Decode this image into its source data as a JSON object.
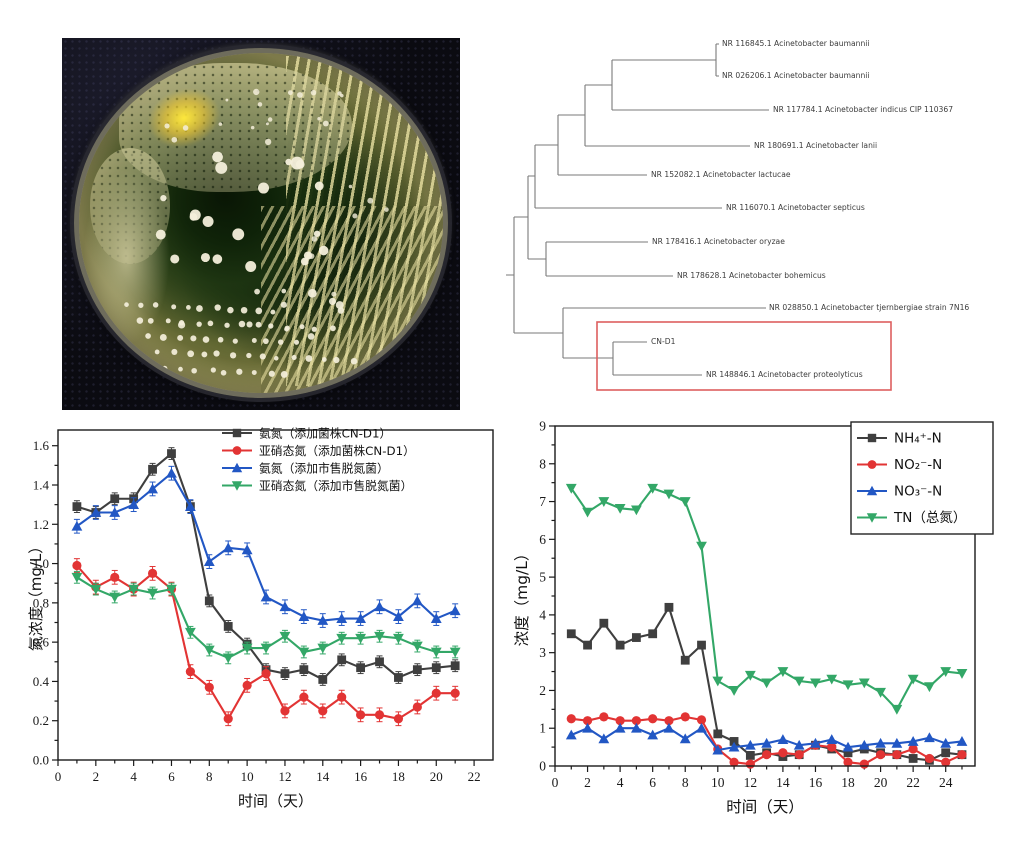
{
  "figure": {
    "panels": [
      "petri-dish-photo",
      "phylogenetic-tree",
      "nitrogen-chart-left",
      "nitrogen-chart-right"
    ]
  },
  "petri": {
    "background_color": "#0b0b11",
    "agar_color": "#2e4418",
    "rim_color": "#6e6c5c",
    "colony_color": "#f4efdb"
  },
  "tree": {
    "branch_color": "#7a7a7a",
    "highlight_box_color": "#dd5f5f",
    "leaves": [
      {
        "label": "NR 116845.1 Acinetobacter baumannii"
      },
      {
        "label": "NR 026206.1 Acinetobacter baumannii"
      },
      {
        "label": "NR 117784.1 Acinetobacter indicus CIP 110367"
      },
      {
        "label": "NR 180691.1 Acinetobacter lanii"
      },
      {
        "label": "NR 152082.1 Acinetobacter lactucae"
      },
      {
        "label": "NR 116070.1 Acinetobacter septicus"
      },
      {
        "label": "NR 178416.1 Acinetobacter oryzae"
      },
      {
        "label": "NR 178628.1 Acinetobacter bohemicus"
      },
      {
        "label": "NR 028850.1 Acinetobacter tjernbergiae strain 7N16"
      },
      {
        "label": "CN-D1"
      },
      {
        "label": "NR 148846.1 Acinetobacter proteolyticus"
      }
    ],
    "highlighted_leaves": [
      "CN-D1",
      "NR 148846.1 Acinetobacter proteolyticus"
    ]
  },
  "chart_data": [
    {
      "type": "line",
      "title": "",
      "xlabel": "时间（天）",
      "ylabel": "氮浓度（mg/L）",
      "xlim": [
        0,
        23
      ],
      "ylim": [
        0,
        1.68
      ],
      "xticks": [
        0,
        2,
        4,
        6,
        8,
        10,
        12,
        14,
        16,
        18,
        20,
        22
      ],
      "yticks": [
        0.0,
        0.2,
        0.4,
        0.6,
        0.8,
        1.0,
        1.2,
        1.4,
        1.6
      ],
      "ytick_decimals": 1,
      "grid": false,
      "legend_position": "top-right",
      "legend_box": false,
      "x_start": 1,
      "series": [
        {
          "name": "氨氮（添加菌株CN-D1）",
          "color": "#3f3f3f",
          "marker": "square",
          "err": 0.03,
          "values": [
            1.29,
            1.26,
            1.33,
            1.33,
            1.48,
            1.56,
            1.29,
            0.81,
            0.68,
            0.59,
            0.46,
            0.44,
            0.46,
            0.41,
            0.51,
            0.47,
            0.5,
            0.42,
            0.46,
            0.47,
            0.48
          ]
        },
        {
          "name": "亚硝态氮（添加菌株CN-D1）",
          "color": "#e23434",
          "marker": "circle",
          "err": 0.035,
          "values": [
            0.99,
            0.88,
            0.93,
            0.87,
            0.95,
            0.87,
            0.45,
            0.37,
            0.21,
            0.38,
            0.44,
            0.25,
            0.32,
            0.25,
            0.32,
            0.23,
            0.23,
            0.21,
            0.27,
            0.34,
            0.34
          ]
        },
        {
          "name": "氨氮（添加市售脱氮菌）",
          "color": "#2257c4",
          "marker": "triangle-up",
          "err": 0.035,
          "values": [
            1.19,
            1.26,
            1.26,
            1.3,
            1.38,
            1.46,
            1.29,
            1.01,
            1.08,
            1.07,
            0.83,
            0.78,
            0.73,
            0.71,
            0.72,
            0.72,
            0.78,
            0.73,
            0.81,
            0.72,
            0.76
          ]
        },
        {
          "name": "亚硝态氮（添加市售脱氮菌）",
          "color": "#33a767",
          "marker": "triangle-down",
          "err": 0.03,
          "values": [
            0.93,
            0.87,
            0.83,
            0.87,
            0.85,
            0.87,
            0.65,
            0.56,
            0.52,
            0.57,
            0.57,
            0.63,
            0.55,
            0.57,
            0.62,
            0.62,
            0.63,
            0.62,
            0.58,
            0.55,
            0.55
          ]
        }
      ]
    },
    {
      "type": "line",
      "title": "",
      "xlabel": "时间（天）",
      "ylabel": "浓度（mg/L）",
      "xlim": [
        0,
        25.8
      ],
      "ylim": [
        0,
        9
      ],
      "xticks": [
        0,
        2,
        4,
        6,
        8,
        10,
        12,
        14,
        16,
        18,
        20,
        22,
        24
      ],
      "yticks": [
        0,
        1,
        2,
        3,
        4,
        5,
        6,
        7,
        8,
        9
      ],
      "ytick_decimals": 0,
      "grid": false,
      "legend_position": "top-right",
      "legend_box": true,
      "x_start": 1,
      "series": [
        {
          "name": "NH₄⁺-N",
          "color": "#3f3f3f",
          "marker": "square",
          "err": 0,
          "values": [
            3.5,
            3.2,
            3.78,
            3.2,
            3.4,
            3.5,
            4.2,
            2.8,
            3.2,
            0.85,
            0.65,
            0.28,
            0.35,
            0.25,
            0.3,
            0.55,
            0.45,
            0.35,
            0.45,
            0.35,
            0.3,
            0.2,
            0.15,
            0.35,
            0.3
          ]
        },
        {
          "name": "NO₂⁻-N",
          "color": "#e23434",
          "marker": "circle",
          "err": 0,
          "values": [
            1.25,
            1.2,
            1.3,
            1.2,
            1.2,
            1.25,
            1.2,
            1.3,
            1.22,
            0.45,
            0.1,
            0.05,
            0.3,
            0.35,
            0.3,
            0.55,
            0.5,
            0.1,
            0.05,
            0.3,
            0.3,
            0.45,
            0.2,
            0.1,
            0.3
          ]
        },
        {
          "name": "NO₃⁻-N",
          "color": "#2257c4",
          "marker": "triangle-up",
          "err": 0,
          "values": [
            0.82,
            1.0,
            0.72,
            1.0,
            1.0,
            0.82,
            1.0,
            0.72,
            1.0,
            0.42,
            0.5,
            0.55,
            0.6,
            0.7,
            0.55,
            0.6,
            0.7,
            0.5,
            0.55,
            0.6,
            0.6,
            0.65,
            0.75,
            0.6,
            0.65
          ]
        },
        {
          "name": "TN（总氮）",
          "color": "#33a767",
          "marker": "triangle-down",
          "err": 0,
          "values": [
            7.35,
            6.72,
            7.0,
            6.82,
            6.78,
            7.35,
            7.2,
            7.0,
            5.82,
            2.25,
            2.0,
            2.4,
            2.2,
            2.5,
            2.25,
            2.2,
            2.3,
            2.15,
            2.2,
            1.95,
            1.5,
            2.3,
            2.1,
            2.5,
            2.45
          ]
        }
      ]
    }
  ]
}
